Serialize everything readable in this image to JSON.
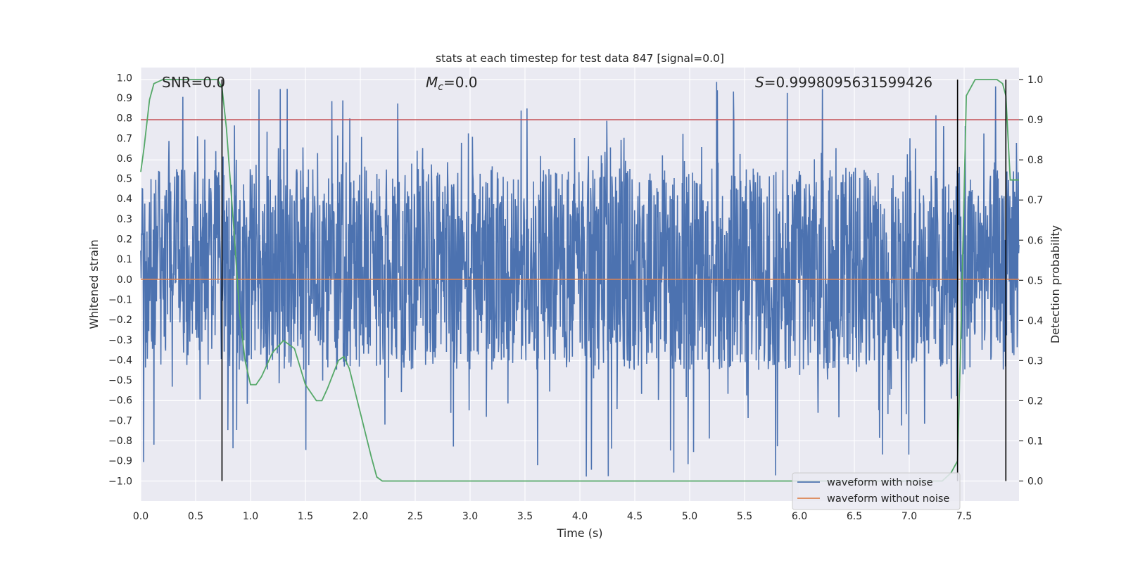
{
  "chart_data": {
    "type": "line",
    "title": "stats at each timestep for test data 847 [signal=0.0]",
    "xlabel": "Time (s)",
    "ylabel": "Whitened strain",
    "y2label": "Detection probability",
    "xlim": [
      0.0,
      8.0
    ],
    "ylim": [
      -1.1,
      1.05
    ],
    "y2lim": [
      -0.05,
      1.03
    ],
    "xticks": [
      "0.0",
      "0.5",
      "1.0",
      "1.5",
      "2.0",
      "2.5",
      "3.0",
      "3.5",
      "4.0",
      "4.5",
      "5.0",
      "5.5",
      "6.0",
      "6.5",
      "7.0",
      "7.5"
    ],
    "yticks": [
      "1.0",
      "0.9",
      "0.8",
      "0.7",
      "0.6",
      "0.5",
      "0.4",
      "0.3",
      "0.2",
      "0.1",
      "0.0",
      "-0.1",
      "-0.2",
      "-0.3",
      "-0.4",
      "-0.5",
      "-0.6",
      "-0.7",
      "-0.8",
      "-0.9",
      "-1.0"
    ],
    "y2ticks": [
      "0.0",
      "0.1",
      "0.2",
      "0.3",
      "0.4",
      "0.5",
      "0.6",
      "0.7",
      "0.8",
      "0.9",
      "1.0"
    ],
    "annotations": {
      "snr": "SNR=0.0",
      "mc_symbol": "M",
      "mc_sub": "c",
      "mc_value": "=0.0",
      "s_symbol": "S",
      "s_value": "=0.9998095631599426"
    },
    "noise_envelope": {
      "low": -0.45,
      "high": 0.55,
      "spike_min": -0.98,
      "spike_max": 0.98,
      "samples": 2400
    },
    "threshold": {
      "y2": 0.9,
      "color": "#c44e52"
    },
    "vlines_x": [
      0.74,
      7.44,
      7.88
    ],
    "series": [
      {
        "name": "waveform with noise",
        "color": "#4c72b0",
        "kind": "noise"
      },
      {
        "name": "waveform without noise",
        "color": "#dd8452",
        "kind": "flat",
        "y": 0.0
      },
      {
        "name": "detection probability",
        "color": "#55a868",
        "kind": "prob",
        "x": [
          0.0,
          0.03,
          0.08,
          0.12,
          0.2,
          0.5,
          0.7,
          0.74,
          0.78,
          0.85,
          0.9,
          0.95,
          1.0,
          1.05,
          1.1,
          1.2,
          1.3,
          1.4,
          1.5,
          1.6,
          1.65,
          1.7,
          1.8,
          1.85,
          1.9,
          2.0,
          2.1,
          2.15,
          2.2,
          7.3,
          7.38,
          7.44,
          7.47,
          7.52,
          7.6,
          7.8,
          7.85,
          7.88,
          7.92,
          8.0
        ],
        "y": [
          0.77,
          0.83,
          0.95,
          0.99,
          1.0,
          1.0,
          1.0,
          0.98,
          0.88,
          0.62,
          0.42,
          0.3,
          0.24,
          0.24,
          0.26,
          0.32,
          0.35,
          0.33,
          0.24,
          0.2,
          0.2,
          0.23,
          0.3,
          0.31,
          0.28,
          0.17,
          0.06,
          0.01,
          0.0,
          0.0,
          0.02,
          0.05,
          0.36,
          0.96,
          1.0,
          1.0,
          0.99,
          0.96,
          0.75,
          0.75
        ]
      }
    ],
    "legend": {
      "position": "lower-right",
      "entries": [
        "waveform with noise",
        "waveform without noise"
      ]
    }
  }
}
